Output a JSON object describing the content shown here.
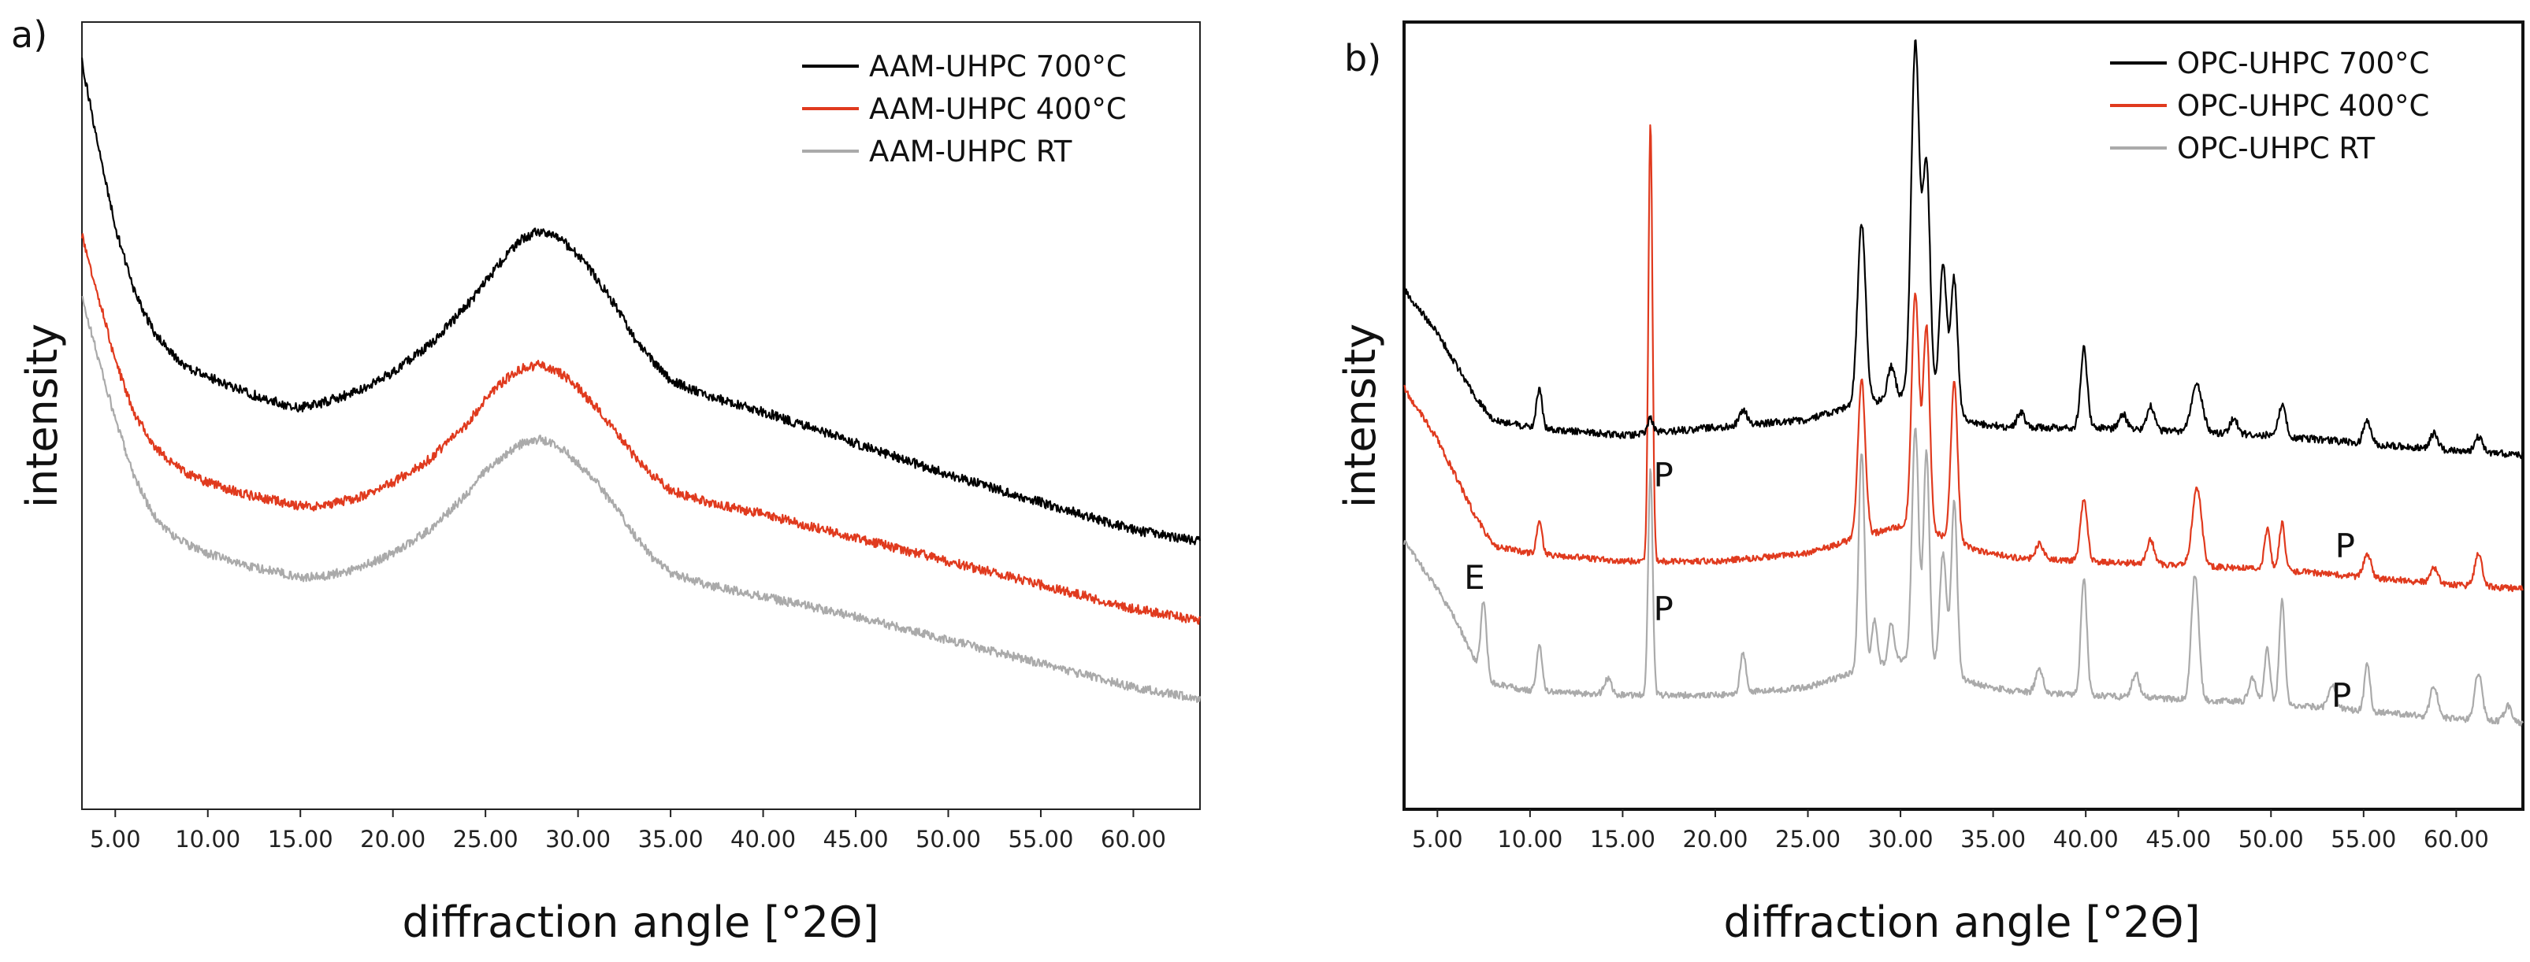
{
  "chart_data": [
    {
      "type": "line",
      "panel_label": "a)",
      "xlabel": "diffraction angle [°2Θ]",
      "ylabel": "intensity",
      "xlim": [
        3.2,
        63.6
      ],
      "ylim": [
        0,
        100
      ],
      "x_ticks": [
        "5.00",
        "10.00",
        "15.00",
        "20.00",
        "25.00",
        "30.00",
        "35.00",
        "40.00",
        "45.00",
        "50.00",
        "55.00",
        "60.00"
      ],
      "y_ticks_shown": false,
      "legend_position": "top-right",
      "series": [
        {
          "name": "AAM-UHPC 700°C",
          "color": "#000000",
          "noise": 0.6,
          "x": [
            3.2,
            4,
            5,
            6,
            7,
            8,
            9,
            10,
            12,
            14,
            15,
            16,
            18,
            20,
            22,
            24,
            25,
            26,
            27,
            28,
            29,
            30,
            31,
            32,
            33,
            34,
            35,
            37,
            40,
            45,
            50,
            55,
            60,
            63.6
          ],
          "y": [
            95,
            85,
            74,
            66,
            61,
            58,
            56,
            55,
            53,
            51.5,
            51,
            51.5,
            53,
            55.5,
            59,
            64,
            67,
            70,
            72.5,
            73.5,
            72.5,
            70.5,
            67.5,
            64,
            60,
            57,
            54.5,
            52.5,
            50.5,
            46.5,
            42.5,
            39,
            35.5,
            34
          ]
        },
        {
          "name": "AAM-UHPC 400°C",
          "color": "#e03a1e",
          "noise": 0.6,
          "x": [
            3.2,
            4,
            5,
            6,
            7,
            8,
            9,
            10,
            12,
            14,
            15,
            16,
            18,
            20,
            22,
            24,
            25,
            26,
            27,
            28,
            29,
            30,
            31,
            32,
            33,
            34,
            35,
            37,
            40,
            45,
            50,
            55,
            60,
            63.6
          ],
          "y": [
            73,
            66,
            57,
            50.5,
            46.5,
            44,
            42.5,
            41.5,
            40,
            39,
            38.5,
            38.5,
            39.5,
            41.5,
            44.5,
            49,
            52,
            54.5,
            56,
            56.5,
            55.5,
            53.5,
            51,
            48,
            45,
            42.5,
            40.5,
            39,
            37.5,
            34.5,
            31.5,
            28.5,
            25.5,
            24
          ]
        },
        {
          "name": "AAM-UHPC RT",
          "color": "#aaaaaa",
          "noise": 0.55,
          "x": [
            3.2,
            4,
            5,
            6,
            7,
            8,
            9,
            10,
            12,
            14,
            15,
            16,
            18,
            20,
            22,
            24,
            25,
            26,
            27,
            28,
            29,
            30,
            31,
            32,
            33,
            34,
            35,
            37,
            40,
            45,
            50,
            55,
            60,
            63.6
          ],
          "y": [
            65,
            58,
            49.5,
            42.5,
            37.5,
            35,
            33.5,
            32.5,
            31,
            30,
            29.5,
            29.5,
            30.5,
            32.5,
            35.5,
            40,
            43,
            45,
            46.5,
            47,
            46,
            44,
            41.5,
            38.5,
            35,
            32,
            30,
            28.5,
            27,
            24.5,
            21.5,
            18.5,
            15.5,
            14
          ]
        }
      ]
    },
    {
      "type": "line",
      "panel_label": "b)",
      "xlabel": "diffraction angle [°2Θ]",
      "ylabel": "intensity",
      "xlim": [
        3.2,
        63.6
      ],
      "ylim": [
        0,
        100
      ],
      "x_ticks": [
        "5.00",
        "10.00",
        "15.00",
        "20.00",
        "25.00",
        "30.00",
        "35.00",
        "40.00",
        "45.00",
        "50.00",
        "55.00",
        "60.00"
      ],
      "y_ticks_shown": false,
      "legend_position": "top-right",
      "annotations": [
        {
          "text": "P",
          "x": 17.2,
          "y": 41
        },
        {
          "text": "P",
          "x": 17.2,
          "y": 24
        },
        {
          "text": "E",
          "x": 7.0,
          "y": 28
        },
        {
          "text": "P",
          "x": 54.0,
          "y": 32
        },
        {
          "text": "P",
          "x": 53.8,
          "y": 13
        }
      ],
      "series": [
        {
          "name": "OPC-UHPC 700°C",
          "color": "#000000",
          "noise": 0.45,
          "baseline_x": [
            3.2,
            5,
            7,
            8,
            10,
            15,
            20,
            25,
            27,
            30,
            32,
            34,
            36,
            40,
            45,
            50,
            55,
            60,
            63.6
          ],
          "baseline_y": [
            66,
            60.5,
            52.5,
            49.5,
            48.5,
            47.5,
            48.5,
            49.5,
            51,
            52.5,
            51.5,
            49,
            48.5,
            48.5,
            48,
            47.5,
            46.5,
            45.5,
            45
          ],
          "peaks": [
            [
              10.5,
              5,
              0.15
            ],
            [
              16.5,
              2,
              0.15
            ],
            [
              21.5,
              2,
              0.2
            ],
            [
              27.9,
              23,
              0.22
            ],
            [
              29.5,
              4,
              0.2
            ],
            [
              30.8,
              45,
              0.22
            ],
            [
              31.4,
              30,
              0.2
            ],
            [
              32.3,
              18,
              0.2
            ],
            [
              32.9,
              17,
              0.18
            ],
            [
              36.5,
              2,
              0.2
            ],
            [
              39.9,
              10,
              0.18
            ],
            [
              42.0,
              2,
              0.2
            ],
            [
              43.5,
              3,
              0.2
            ],
            [
              46.0,
              6,
              0.3
            ],
            [
              48.0,
              2,
              0.2
            ],
            [
              50.6,
              4,
              0.2
            ],
            [
              55.2,
              3,
              0.2
            ],
            [
              58.8,
              2,
              0.2
            ],
            [
              61.2,
              2,
              0.2
            ]
          ]
        },
        {
          "name": "OPC-UHPC 400°C",
          "color": "#e03a1e",
          "noise": 0.4,
          "baseline_x": [
            3.2,
            5,
            7,
            8,
            10,
            15,
            20,
            25,
            27,
            30,
            32,
            34,
            36,
            40,
            45,
            50,
            55,
            60,
            63.6
          ],
          "baseline_y": [
            53.5,
            47,
            37.5,
            33.5,
            32.5,
            31.5,
            31.5,
            32.5,
            34,
            36,
            35,
            33,
            32,
            31.5,
            31,
            30.5,
            29.5,
            28.5,
            28
          ],
          "peaks": [
            [
              10.5,
              4,
              0.15
            ],
            [
              16.5,
              56,
              0.11
            ],
            [
              27.9,
              20,
              0.2
            ],
            [
              30.8,
              30,
              0.2
            ],
            [
              31.4,
              26,
              0.18
            ],
            [
              32.9,
              20,
              0.18
            ],
            [
              37.5,
              2,
              0.2
            ],
            [
              39.9,
              8,
              0.18
            ],
            [
              43.5,
              3,
              0.2
            ],
            [
              46.0,
              10,
              0.25
            ],
            [
              49.8,
              5,
              0.15
            ],
            [
              50.6,
              6,
              0.15
            ],
            [
              55.2,
              3,
              0.2
            ],
            [
              58.8,
              2,
              0.2
            ],
            [
              61.2,
              4,
              0.2
            ]
          ]
        },
        {
          "name": "OPC-UHPC RT",
          "color": "#aaaaaa",
          "noise": 0.4,
          "baseline_x": [
            3.2,
            5,
            6,
            7,
            8,
            10,
            15,
            20,
            25,
            27,
            30,
            32,
            34,
            36,
            40,
            45,
            50,
            55,
            60,
            63.6
          ],
          "baseline_y": [
            34,
            28,
            24,
            19,
            16,
            15,
            14.5,
            14.5,
            15.5,
            17,
            19,
            18,
            16,
            15,
            14.5,
            14,
            13.5,
            12.5,
            11.5,
            11
          ],
          "peaks": [
            [
              7.5,
              9,
              0.15
            ],
            [
              10.5,
              6,
              0.15
            ],
            [
              14.2,
              2,
              0.2
            ],
            [
              16.5,
              29,
              0.12
            ],
            [
              21.5,
              5,
              0.15
            ],
            [
              27.9,
              28,
              0.16
            ],
            [
              28.6,
              6,
              0.15
            ],
            [
              29.5,
              5,
              0.15
            ],
            [
              30.8,
              30,
              0.18
            ],
            [
              31.4,
              27,
              0.16
            ],
            [
              32.3,
              15,
              0.18
            ],
            [
              32.9,
              22,
              0.16
            ],
            [
              37.5,
              3,
              0.2
            ],
            [
              39.9,
              15,
              0.16
            ],
            [
              42.7,
              3,
              0.2
            ],
            [
              45.9,
              16,
              0.2
            ],
            [
              49.0,
              3,
              0.2
            ],
            [
              49.8,
              7,
              0.15
            ],
            [
              50.6,
              13,
              0.15
            ],
            [
              53.3,
              3,
              0.2
            ],
            [
              55.2,
              6,
              0.15
            ],
            [
              58.8,
              4,
              0.2
            ],
            [
              61.2,
              6,
              0.2
            ],
            [
              62.8,
              2,
              0.2
            ]
          ]
        }
      ]
    }
  ]
}
